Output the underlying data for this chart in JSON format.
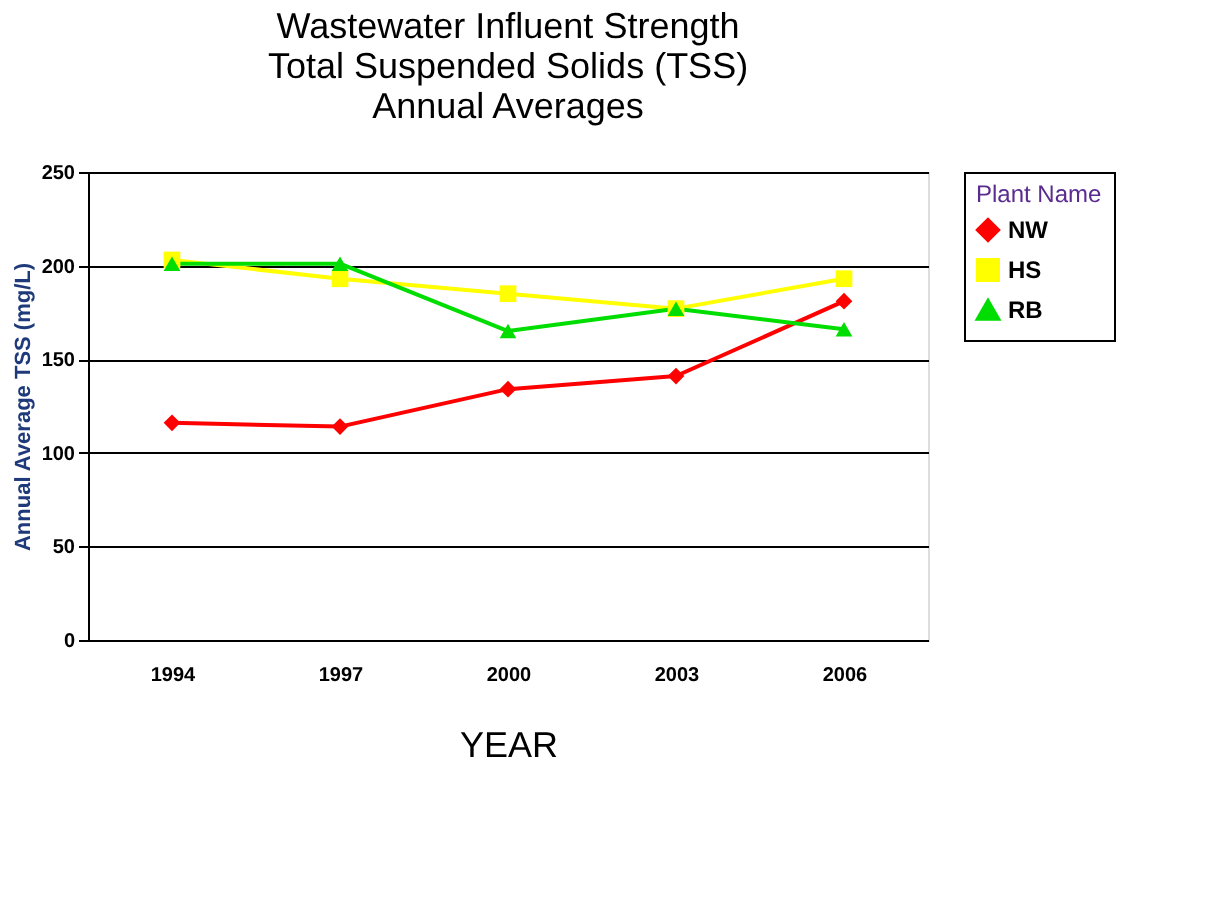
{
  "chart_data": {
    "type": "line",
    "title": [
      "Wastewater Influent Strength",
      "Total Suspended Solids (TSS)",
      "Annual Averages"
    ],
    "xlabel": "YEAR",
    "ylabel": "Annual Average TSS (mg/L)",
    "legend_title": "Plant Name",
    "categories": [
      "1994",
      "1997",
      "2000",
      "2003",
      "2006"
    ],
    "series": [
      {
        "name": "NW",
        "color": "#ff0000",
        "marker": "diamond",
        "values": [
          116,
          114,
          134,
          141,
          181
        ]
      },
      {
        "name": "HS",
        "color": "#ffff00",
        "marker": "square",
        "values": [
          203,
          193,
          185,
          177,
          193
        ]
      },
      {
        "name": "RB",
        "color": "#00dd00",
        "marker": "triangle",
        "values": [
          201,
          201,
          165,
          177,
          166
        ]
      }
    ],
    "ylim": [
      0,
      250
    ],
    "yticks": [
      0,
      50,
      100,
      150,
      200,
      250
    ],
    "grid": "y",
    "legend": "right",
    "line_style": "solid"
  }
}
